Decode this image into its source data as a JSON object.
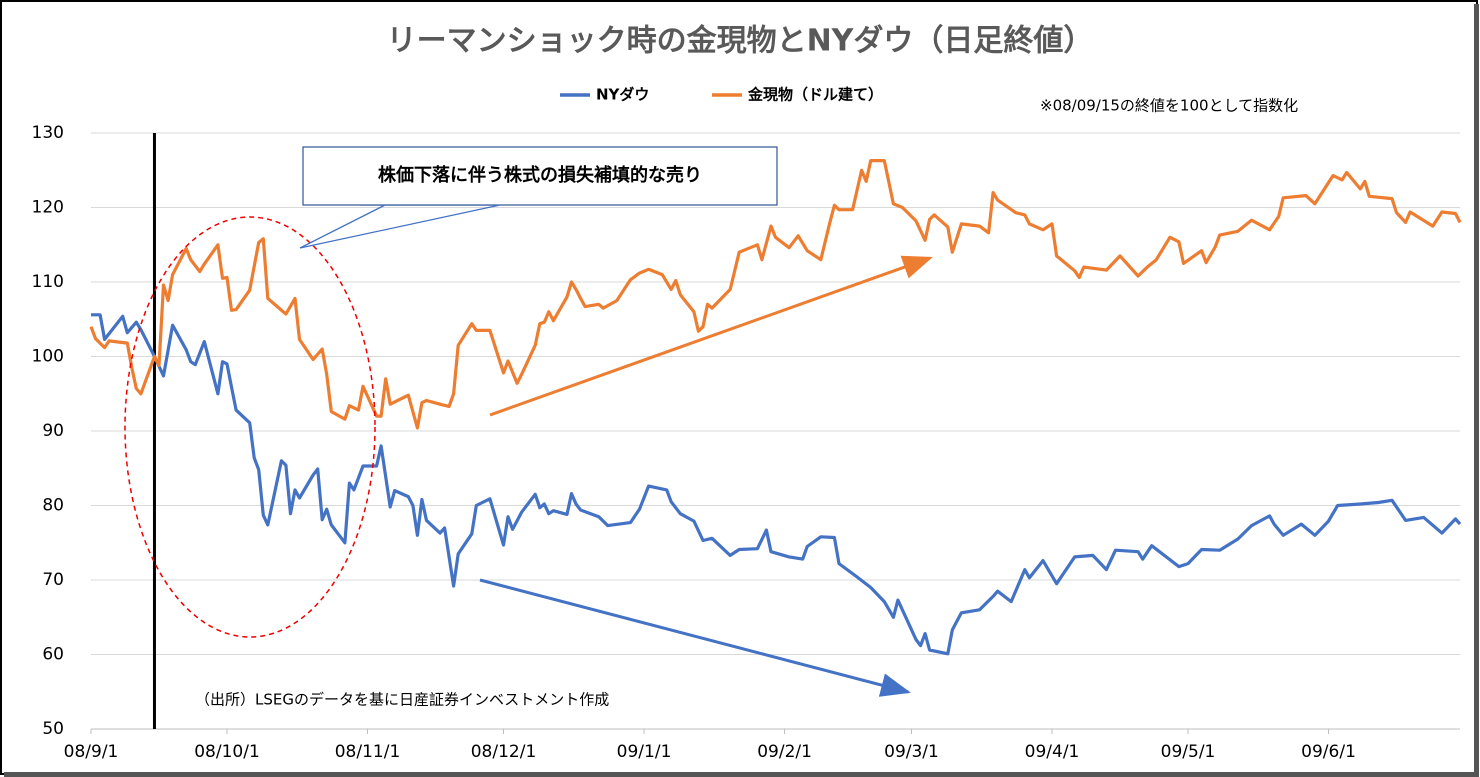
{
  "chart_data": {
    "type": "line",
    "title": "リーマンショック時の金現物とNYダウ（日足終値）",
    "note": "※08/09/15の終値を100として指数化",
    "callout": "株価下落に伴う株式の損失補填的な売り",
    "source": "（出所）LSEGのデータを基に日産証券インベストメント作成",
    "vline": "08/9/15",
    "xlim": [
      "08/9/1",
      "09/6/30"
    ],
    "xticks": [
      "08/9/1",
      "08/10/1",
      "08/11/1",
      "08/12/1",
      "09/1/1",
      "09/2/1",
      "09/3/1",
      "09/4/1",
      "09/5/1",
      "09/6/1"
    ],
    "ylim": [
      50,
      130
    ],
    "yticks": [
      50,
      60,
      70,
      80,
      90,
      100,
      110,
      120,
      130
    ],
    "grid": true,
    "series": [
      {
        "name": "NYダウ",
        "color": "#4472c4",
        "x": [
          "08/9/1",
          "08/9/3",
          "08/9/4",
          "08/9/8",
          "08/9/9",
          "08/9/11",
          "08/9/12",
          "08/9/15",
          "08/9/17",
          "08/9/19",
          "08/9/22",
          "08/9/23",
          "08/9/24",
          "08/9/26",
          "08/9/29",
          "08/9/30",
          "08/10/1",
          "08/10/2",
          "08/10/3",
          "08/10/6",
          "08/10/7",
          "08/10/8",
          "08/10/9",
          "08/10/10",
          "08/10/13",
          "08/10/14",
          "08/10/15",
          "08/10/16",
          "08/10/17",
          "08/10/20",
          "08/10/21",
          "08/10/22",
          "08/10/23",
          "08/10/24",
          "08/10/27",
          "08/10/28",
          "08/10/29",
          "08/10/31",
          "08/11/3",
          "08/11/4",
          "08/11/6",
          "08/11/7",
          "08/11/10",
          "08/11/11",
          "08/11/12",
          "08/11/13",
          "08/11/14",
          "08/11/17",
          "08/11/18",
          "08/11/20",
          "08/11/21",
          "08/11/24",
          "08/11/25",
          "08/11/28",
          "08/12/1",
          "08/12/2",
          "08/12/3",
          "08/12/5",
          "08/12/8",
          "08/12/9",
          "08/12/10",
          "08/12/11",
          "08/12/12",
          "08/12/15",
          "08/12/16",
          "08/12/17",
          "08/12/18",
          "08/12/22",
          "08/12/24",
          "08/12/29",
          "08/12/31",
          "09/1/2",
          "09/1/6",
          "09/1/7",
          "09/1/9",
          "09/1/12",
          "09/1/14",
          "09/1/16",
          "09/1/20",
          "09/1/22",
          "09/1/26",
          "09/1/28",
          "09/1/29",
          "09/2/2",
          "09/2/5",
          "09/2/6",
          "09/2/9",
          "09/2/12",
          "09/2/13",
          "09/2/17",
          "09/2/20",
          "09/2/23",
          "09/2/25",
          "09/2/26",
          "09/3/2",
          "09/3/3",
          "09/3/4",
          "09/3/5",
          "09/3/9",
          "09/3/10",
          "09/3/12",
          "09/3/16",
          "09/3/19",
          "09/3/20",
          "09/3/23",
          "09/3/26",
          "09/3/27",
          "09/3/30",
          "09/4/2",
          "09/4/6",
          "09/4/10",
          "09/4/13",
          "09/4/15",
          "09/4/20",
          "09/4/21",
          "09/4/23",
          "09/4/29",
          "09/5/1",
          "09/5/4",
          "09/5/8",
          "09/5/12",
          "09/5/15",
          "09/5/19",
          "09/5/20",
          "09/5/22",
          "09/5/26",
          "09/5/29",
          "09/6/1",
          "09/6/3",
          "09/6/8",
          "09/6/12",
          "09/6/15",
          "09/6/18",
          "09/6/22",
          "09/6/26",
          "09/6/29",
          "09/6/30"
        ],
        "values": [
          105.6,
          105.6,
          102.3,
          105.4,
          103.2,
          104.6,
          103.6,
          100.0,
          97.4,
          104.2,
          100.9,
          99.3,
          98.9,
          102.0,
          95.0,
          99.3,
          99.0,
          95.9,
          92.8,
          91.1,
          86.4,
          84.8,
          78.7,
          77.4,
          86.0,
          85.4,
          78.9,
          82.1,
          81.0,
          84.1,
          84.9,
          78.1,
          79.5,
          77.4,
          75.0,
          83.0,
          82.1,
          85.3,
          85.3,
          88.0,
          79.8,
          82.0,
          81.2,
          80.0,
          76.0,
          80.8,
          78.0,
          76.3,
          77.0,
          69.2,
          73.5,
          76.2,
          80.0,
          80.9,
          74.7,
          78.5,
          76.8,
          79.1,
          81.5,
          79.7,
          80.2,
          78.9,
          79.3,
          78.8,
          81.6,
          80.2,
          79.4,
          78.5,
          77.3,
          77.7,
          79.5,
          82.6,
          82.1,
          80.5,
          78.9,
          77.9,
          75.3,
          75.6,
          73.3,
          74.1,
          74.2,
          76.7,
          73.8,
          73.1,
          72.8,
          74.5,
          75.8,
          75.7,
          72.2,
          70.4,
          69.0,
          67.1,
          65.0,
          67.3,
          62.0,
          61.2,
          62.8,
          60.6,
          60.1,
          63.3,
          65.6,
          66.0,
          67.8,
          68.5,
          67.1,
          71.4,
          70.3,
          72.6,
          69.5,
          73.1,
          73.3,
          71.4,
          74.0,
          73.8,
          72.8,
          74.6,
          71.8,
          72.2,
          74.1,
          74.0,
          75.5,
          77.3,
          78.6,
          77.5,
          76.0,
          77.5,
          76.0,
          77.9,
          80.0,
          80.2,
          80.4,
          80.7,
          78.0,
          78.4,
          76.3,
          78.2,
          77.5
        ]
      },
      {
        "name": "金現物（ドル建て）",
        "color": "#ed7d31",
        "x": [
          "08/9/1",
          "08/9/2",
          "08/9/4",
          "08/9/5",
          "08/9/9",
          "08/9/10",
          "08/9/11",
          "08/9/12",
          "08/9/15",
          "08/9/16",
          "08/9/17",
          "08/9/18",
          "08/9/19",
          "08/9/22",
          "08/9/23",
          "08/9/25",
          "08/9/26",
          "08/9/29",
          "08/9/30",
          "08/10/1",
          "08/10/2",
          "08/10/3",
          "08/10/6",
          "08/10/8",
          "08/10/9",
          "08/10/10",
          "08/10/14",
          "08/10/16",
          "08/10/17",
          "08/10/20",
          "08/10/22",
          "08/10/23",
          "08/10/24",
          "08/10/27",
          "08/10/28",
          "08/10/30",
          "08/10/31",
          "08/11/3",
          "08/11/4",
          "08/11/5",
          "08/11/6",
          "08/11/10",
          "08/11/12",
          "08/11/13",
          "08/11/14",
          "08/11/17",
          "08/11/19",
          "08/11/20",
          "08/11/21",
          "08/11/24",
          "08/11/25",
          "08/11/28",
          "08/12/1",
          "08/12/2",
          "08/12/4",
          "08/12/5",
          "08/12/8",
          "08/12/9",
          "08/12/10",
          "08/12/11",
          "08/12/12",
          "08/12/15",
          "08/12/16",
          "08/12/17",
          "08/12/18",
          "08/12/19",
          "08/12/22",
          "08/12/23",
          "08/12/26",
          "08/12/29",
          "08/12/31",
          "09/1/2",
          "09/1/5",
          "09/1/7",
          "09/1/8",
          "09/1/9",
          "09/1/12",
          "09/1/13",
          "09/1/14",
          "09/1/15",
          "09/1/16",
          "09/1/20",
          "09/1/22",
          "09/1/26",
          "09/1/27",
          "09/1/29",
          "09/1/30",
          "09/2/2",
          "09/2/4",
          "09/2/6",
          "09/2/9",
          "09/2/11",
          "09/2/12",
          "09/2/13",
          "09/2/16",
          "09/2/18",
          "09/2/19",
          "09/2/20",
          "09/2/23",
          "09/2/25",
          "09/2/27",
          "09/3/2",
          "09/3/4",
          "09/3/5",
          "09/3/6",
          "09/3/9",
          "09/3/10",
          "09/3/12",
          "09/3/16",
          "09/3/18",
          "09/3/19",
          "09/3/20",
          "09/3/24",
          "09/3/26",
          "09/3/27",
          "09/3/30",
          "09/4/1",
          "09/4/2",
          "09/4/6",
          "09/4/7",
          "09/4/8",
          "09/4/13",
          "09/4/16",
          "09/4/20",
          "09/4/22",
          "09/4/24",
          "09/4/27",
          "09/4/29",
          "09/4/30",
          "09/5/4",
          "09/5/5",
          "09/5/7",
          "09/5/8",
          "09/5/12",
          "09/5/15",
          "09/5/19",
          "09/5/21",
          "09/5/22",
          "09/5/27",
          "09/5/29",
          "09/6/2",
          "09/6/4",
          "09/6/5",
          "09/6/8",
          "09/6/9",
          "09/6/10",
          "09/6/15",
          "09/6/16",
          "09/6/18",
          "09/6/19",
          "09/6/24",
          "09/6/26",
          "09/6/29",
          "09/6/30"
        ],
        "values": [
          104.0,
          102.4,
          101.2,
          102.1,
          101.8,
          98.5,
          95.7,
          95.0,
          100.0,
          98.8,
          109.6,
          107.5,
          111.0,
          114.5,
          113.0,
          111.4,
          112.4,
          115.0,
          110.5,
          110.6,
          106.2,
          106.3,
          108.9,
          115.3,
          115.8,
          107.8,
          105.7,
          107.8,
          102.3,
          99.6,
          101.0,
          97.6,
          92.6,
          91.6,
          93.4,
          92.8,
          96.0,
          92.0,
          92.0,
          97.0,
          93.6,
          94.8,
          90.4,
          93.8,
          94.1,
          93.6,
          93.3,
          95.0,
          101.5,
          104.4,
          103.5,
          103.5,
          97.8,
          99.4,
          96.4,
          97.6,
          101.5,
          104.4,
          104.6,
          106.0,
          104.8,
          108.0,
          110.0,
          109.0,
          107.8,
          106.7,
          107.0,
          106.5,
          107.5,
          110.3,
          111.2,
          111.7,
          111.0,
          109.0,
          110.2,
          108.3,
          106.0,
          103.4,
          104.0,
          107.0,
          106.5,
          109.0,
          114.0,
          115.0,
          113.0,
          117.5,
          116.0,
          114.6,
          116.2,
          114.2,
          113.0,
          118.0,
          120.3,
          119.7,
          119.7,
          125.0,
          123.5,
          126.3,
          126.3,
          120.5,
          120.0,
          118.2,
          115.6,
          118.4,
          119.0,
          117.4,
          114.0,
          117.8,
          117.5,
          116.6,
          122.0,
          121.0,
          119.3,
          119.0,
          117.8,
          117.0,
          117.8,
          113.5,
          111.5,
          110.6,
          112.0,
          111.6,
          113.5,
          110.8,
          112.0,
          113.0,
          116.0,
          115.4,
          112.5,
          114.2,
          112.6,
          114.7,
          116.3,
          116.8,
          118.3,
          117.0,
          118.8,
          121.3,
          121.6,
          120.5,
          124.3,
          123.7,
          124.7,
          122.5,
          123.5,
          121.5,
          121.2,
          119.3,
          118.0,
          119.4,
          117.5,
          119.4,
          119.2,
          118.0
        ]
      }
    ]
  }
}
